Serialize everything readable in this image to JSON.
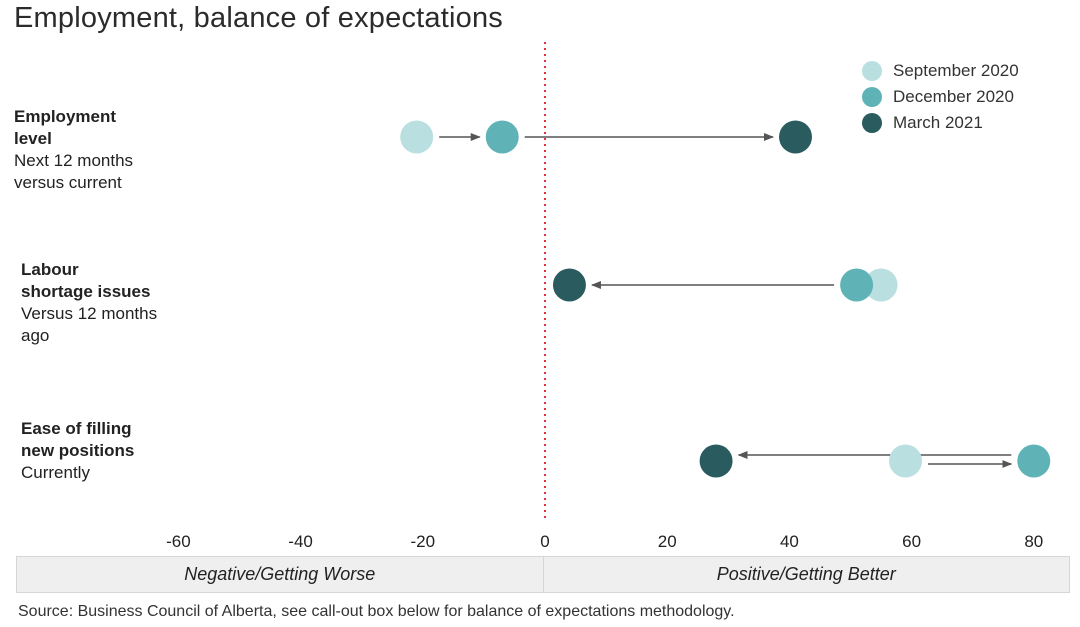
{
  "title": "Employment, balance of expectations",
  "categories": [
    {
      "head": "Employment level",
      "head_lines": [
        "Employment",
        "level"
      ],
      "sub_lines": [
        "Next 12 months",
        "versus current"
      ]
    },
    {
      "head": "Labour shortage issues",
      "head_lines": [
        "Labour",
        "shortage issues"
      ],
      "sub_lines": [
        "Versus 12 months",
        "ago"
      ]
    },
    {
      "head": "Ease of filling new positions",
      "head_lines": [
        "Ease of filling",
        "new positions"
      ],
      "sub_lines": [
        "Currently"
      ]
    }
  ],
  "legend": [
    {
      "label": "September 2020",
      "color": "#b9dfe1"
    },
    {
      "label": "December 2020",
      "color": "#5fb3b7"
    },
    {
      "label": "March 2021",
      "color": "#2a5c5f"
    }
  ],
  "band": {
    "left": "Negative/Getting Worse",
    "right": "Positive/Getting Better"
  },
  "source": "Source: Business Council of Alberta, see call-out box below for balance of expectations methodology.",
  "chart_data": {
    "type": "scatter",
    "title": "Employment, balance of expectations",
    "categories": [
      "Employment level",
      "Labour shortage issues",
      "Ease of filling new positions"
    ],
    "series": [
      {
        "name": "September 2020",
        "color": "#b9dfe1",
        "values": [
          -21,
          55,
          59
        ]
      },
      {
        "name": "December 2020",
        "color": "#5fb3b7",
        "values": [
          -7,
          51,
          80
        ]
      },
      {
        "name": "March 2021",
        "color": "#2a5c5f",
        "values": [
          41,
          4,
          28
        ]
      }
    ],
    "xlim": [
      -60,
      80
    ],
    "x_ticks": [
      -60,
      -40,
      -20,
      0,
      20,
      40,
      60,
      80
    ],
    "x_tick_labels": [
      "-60",
      "-40",
      "-20",
      "0",
      "20",
      "40",
      "60",
      "80"
    ],
    "reference_line": 0,
    "grid": false,
    "legend_position": "top-right"
  }
}
